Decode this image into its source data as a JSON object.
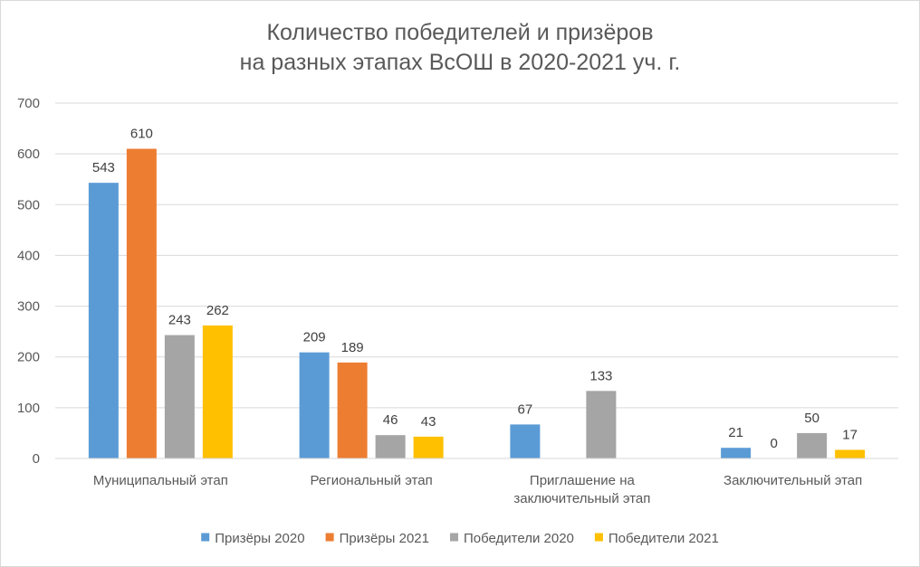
{
  "chart_data": {
    "type": "bar",
    "title_lines": [
      "Количество победителей и призёров",
      "на разных этапах ВсОШ в 2020-2021 уч. г."
    ],
    "xlabel": "",
    "ylabel": "",
    "ylim": [
      0,
      700
    ],
    "yticks": [
      0,
      100,
      200,
      300,
      400,
      500,
      600,
      700
    ],
    "grid": true,
    "legend_position": "bottom",
    "categories": [
      [
        "Муниципальный этап"
      ],
      [
        "Региональный этап"
      ],
      [
        "Приглашение на",
        "заключительный этап"
      ],
      [
        "Заключительный этап"
      ]
    ],
    "series": [
      {
        "name": "Призёры 2020",
        "color": "#5b9bd5",
        "values": [
          543,
          209,
          67,
          21
        ]
      },
      {
        "name": "Призёры 2021",
        "color": "#ed7d31",
        "values": [
          610,
          189,
          null,
          0
        ]
      },
      {
        "name": "Победители 2020",
        "color": "#a5a5a5",
        "values": [
          243,
          46,
          133,
          50
        ]
      },
      {
        "name": "Победители 2021",
        "color": "#ffc000",
        "values": [
          262,
          43,
          null,
          17
        ]
      }
    ]
  }
}
